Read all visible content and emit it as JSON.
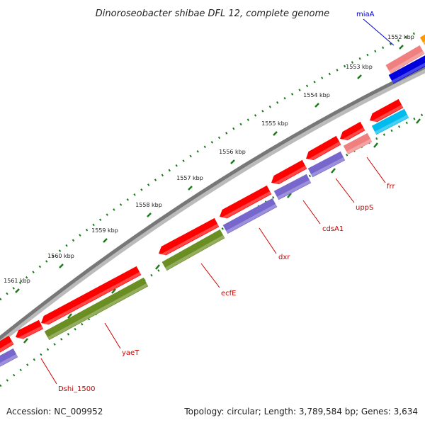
{
  "title": "Dinoroseobacter shibae DFL 12, complete genome",
  "ruler": {
    "ticks": [
      {
        "label": "1552 kbp"
      },
      {
        "label": "1553 kbp"
      },
      {
        "label": "1554 kbp"
      },
      {
        "label": "1555 kbp"
      },
      {
        "label": "1556 kbp"
      },
      {
        "label": "1557 kbp"
      },
      {
        "label": "1558 kbp"
      },
      {
        "label": "1559 kbp"
      },
      {
        "label": "1560 kbp"
      },
      {
        "label": "1561 kbp"
      }
    ]
  },
  "gene_labels": [
    {
      "name": "miaA",
      "color": "#0000cc"
    },
    {
      "name": "frr",
      "color": "#cc0000"
    },
    {
      "name": "uppS",
      "color": "#cc0000"
    },
    {
      "name": "cdsA1",
      "color": "#cc0000"
    },
    {
      "name": "dxr",
      "color": "#cc0000"
    },
    {
      "name": "ecfE",
      "color": "#cc0000"
    },
    {
      "name": "yaeT",
      "color": "#cc0000"
    },
    {
      "name": "Dshi_1500",
      "color": "#cc0000"
    }
  ],
  "colors": {
    "backbone": "#777777",
    "cds_forward": "#ff0000",
    "cds_pink": "#f08080",
    "blue": "#0000dd",
    "cyan": "#00bbee",
    "purple": "#7766cc",
    "olive": "#6b8e23",
    "orange": "#ff9900",
    "tick": "#1a7a1a"
  },
  "footer": {
    "accession": "Accession: NC_009952",
    "summary": "Topology: circular; Length: 3,789,584 bp; Genes: 3,634"
  }
}
